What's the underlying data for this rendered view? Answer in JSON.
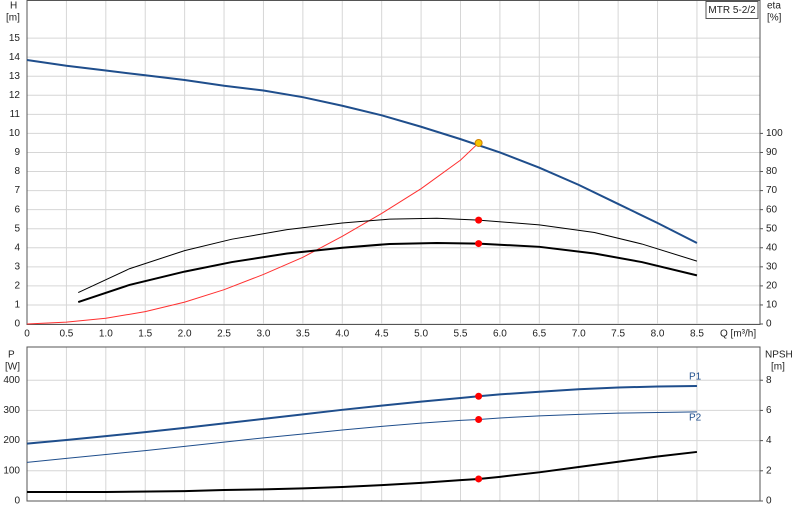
{
  "chart_data": [
    {
      "type": "line",
      "label_box": "MTR 5-2/2",
      "y_label": "H",
      "y_unit": "[m]",
      "y2_label": "eta",
      "y2_unit": "[%]",
      "x_label": "Q [m³/h]",
      "xlim": [
        0,
        9.3
      ],
      "ylim": [
        0,
        17
      ],
      "y2lim": [
        0,
        170
      ],
      "xticks": [
        0,
        {
          "value": 0.5,
          "label": "0.5"
        },
        {
          "value": 1,
          "label": "1.0"
        },
        1.5,
        {
          "value": 2,
          "label": "2.0"
        },
        2.5,
        {
          "value": 3,
          "label": "3.0"
        },
        3.5,
        {
          "value": 4,
          "label": "4.0"
        },
        4.5,
        {
          "value": 5,
          "label": "5.0"
        },
        5.5,
        {
          "value": 6,
          "label": "6.0"
        },
        6.5,
        {
          "value": 7,
          "label": "7.0"
        },
        7.5,
        {
          "value": 8,
          "label": "8.0"
        },
        8.5
      ],
      "yticks": [
        0,
        1,
        2,
        3,
        4,
        5,
        6,
        7,
        8,
        9,
        10,
        11,
        12,
        13,
        14,
        15
      ],
      "y2ticks": [
        0,
        10,
        20,
        30,
        40,
        50,
        60,
        70,
        80,
        90,
        100
      ],
      "grid": true,
      "series": [
        {
          "color": "#1f4e8c",
          "width": 2,
          "x": [
            0,
            0.5,
            1,
            1.5,
            2,
            2.5,
            3,
            3.5,
            4,
            4.5,
            5,
            5.5,
            6,
            6.5,
            7,
            7.5,
            8,
            8.5
          ],
          "values": [
            13.85,
            13.55,
            13.3,
            13.05,
            12.8,
            12.5,
            12.25,
            11.9,
            11.45,
            10.95,
            10.35,
            9.7,
            9.0,
            8.2,
            7.3,
            6.3,
            5.3,
            4.25
          ]
        },
        {
          "color": "#ff3030",
          "width": 1,
          "axis": "y2",
          "x": [
            0,
            0.5,
            1,
            1.5,
            2,
            2.5,
            3,
            3.5,
            4,
            4.5,
            5,
            5.5,
            5.73
          ],
          "values": [
            0,
            1,
            3,
            6.5,
            11.5,
            18,
            26,
            35,
            46,
            58,
            71,
            86,
            95
          ]
        },
        {
          "color": "#000000",
          "width": 1,
          "x": [
            0.65,
            1.3,
            2,
            2.6,
            3.3,
            4,
            4.6,
            5.2,
            5.73,
            6.5,
            7.2,
            7.8,
            8.5
          ],
          "values": [
            1.65,
            2.9,
            3.85,
            4.45,
            4.95,
            5.3,
            5.5,
            5.55,
            5.45,
            5.2,
            4.8,
            4.2,
            3.3
          ]
        },
        {
          "color": "#000000",
          "width": 2,
          "x": [
            0.65,
            1.3,
            2,
            2.6,
            3.3,
            4,
            4.6,
            5.2,
            5.73,
            6.5,
            7.2,
            7.8,
            8.5
          ],
          "values": [
            1.15,
            2.05,
            2.75,
            3.25,
            3.7,
            4.0,
            4.2,
            4.25,
            4.22,
            4.05,
            3.7,
            3.25,
            2.55
          ]
        },
        {
          "color": "#f5c400",
          "marker": true,
          "x": [
            5.73
          ],
          "values": [
            9.5
          ]
        },
        {
          "color": "#ff0000",
          "marker": true,
          "x": [
            5.73,
            5.73
          ],
          "values": [
            5.45,
            4.22
          ]
        }
      ]
    },
    {
      "type": "line",
      "y_label": "P",
      "y_unit": "[W]",
      "y2_label": "NPSH",
      "y2_unit": "[m]",
      "xlim": [
        0,
        9.3
      ],
      "ylim": [
        0,
        510
      ],
      "y2lim": [
        0,
        10.2
      ],
      "yticks": [
        0,
        100,
        200,
        300,
        400
      ],
      "y2ticks": [
        0,
        2,
        4,
        6,
        8
      ],
      "grid": true,
      "series": [
        {
          "name": "P1",
          "color": "#1f4e8c",
          "width": 2,
          "x": [
            0,
            0.5,
            1,
            1.5,
            2,
            2.5,
            3,
            3.5,
            4,
            4.5,
            5,
            5.5,
            5.73,
            6,
            6.5,
            7,
            7.5,
            8,
            8.5
          ],
          "values": [
            190,
            202,
            215,
            228,
            242,
            257,
            272,
            287,
            302,
            316,
            329,
            341,
            347,
            353,
            362,
            370,
            376,
            379,
            381
          ]
        },
        {
          "name": "P2",
          "color": "#1f4e8c",
          "width": 1,
          "x": [
            0,
            0.5,
            1,
            1.5,
            2,
            2.5,
            3,
            3.5,
            4,
            4.5,
            5,
            5.5,
            5.73,
            6,
            6.5,
            7,
            7.5,
            8,
            8.5
          ],
          "values": [
            128,
            141,
            154,
            167,
            181,
            195,
            209,
            222,
            235,
            247,
            258,
            267,
            270,
            275,
            282,
            287,
            291,
            293,
            295
          ]
        },
        {
          "color": "#000000",
          "width": 2,
          "axis": "y2",
          "x": [
            0,
            1,
            2,
            2.5,
            3,
            3.5,
            4,
            4.5,
            5,
            5.5,
            5.73,
            6,
            6.5,
            7,
            7.5,
            8,
            8.5
          ],
          "values": [
            0.6,
            0.6,
            0.65,
            0.73,
            0.77,
            0.84,
            0.93,
            1.05,
            1.2,
            1.38,
            1.46,
            1.6,
            1.9,
            2.25,
            2.6,
            2.95,
            3.25
          ]
        },
        {
          "color": "#ff0000",
          "marker": true,
          "x": [
            5.73,
            5.73
          ],
          "values": [
            347,
            270
          ]
        },
        {
          "color": "#ff0000",
          "marker": true,
          "axis": "y2",
          "x": [
            5.73
          ],
          "values": [
            1.46
          ]
        }
      ]
    }
  ]
}
